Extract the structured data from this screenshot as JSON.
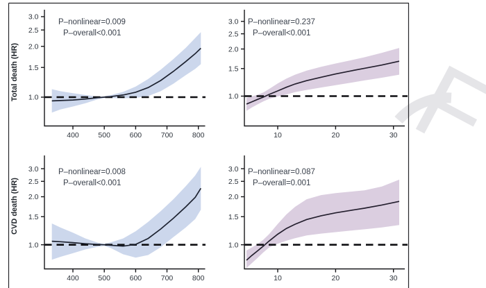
{
  "page": {
    "background": "#ffffff",
    "border_color": "#26262a"
  },
  "watermark": {
    "letter": "F",
    "color": "#e5e5e8"
  },
  "figure": {
    "row_labels": [
      "Total death (HR)",
      "CVD death (HR)"
    ],
    "reference_hr": "1.0"
  },
  "chart_data": [
    {
      "id": "total-death-left",
      "type": "area",
      "ylabel": "Total death (HR)",
      "y_scale": "log",
      "ref_line": 1.0,
      "annotations": [
        "P–nonlinear=0.009",
        "P–overall<0.001"
      ],
      "band_color": "#ccd7ec",
      "line_color": "#1d2230",
      "x_ticks": [
        400,
        500,
        600,
        700,
        800
      ],
      "y_ticks": [
        1.0,
        1.5,
        2.0,
        2.5,
        3.0
      ],
      "x": [
        333,
        360,
        400,
        440,
        480,
        500,
        520,
        560,
        600,
        640,
        680,
        720,
        760,
        790,
        808
      ],
      "hr": [
        0.95,
        0.955,
        0.962,
        0.975,
        0.993,
        1.0,
        1.008,
        1.03,
        1.07,
        1.14,
        1.255,
        1.42,
        1.625,
        1.81,
        1.95
      ],
      "ci_upper": [
        1.115,
        1.085,
        1.055,
        1.03,
        1.008,
        1.01,
        1.028,
        1.075,
        1.155,
        1.28,
        1.455,
        1.68,
        1.96,
        2.24,
        2.43
      ],
      "ci_lower": [
        0.81,
        0.845,
        0.88,
        0.92,
        0.972,
        0.988,
        0.988,
        0.985,
        0.99,
        1.015,
        1.085,
        1.2,
        1.35,
        1.47,
        1.57
      ]
    },
    {
      "id": "total-death-right",
      "type": "area",
      "ylabel": "",
      "y_scale": "log",
      "ref_line": 1.0,
      "annotations": [
        "P–nonlinear=0.237",
        "P–overall<0.001"
      ],
      "band_color": "#dbcee0",
      "line_color": "#241f2e",
      "x_ticks": [
        10,
        20,
        30
      ],
      "y_ticks": [
        1.0,
        1.5,
        2.0,
        2.5,
        3.0
      ],
      "x": [
        4.6,
        5.5,
        6.5,
        7.5,
        8.5,
        10,
        11.5,
        13,
        15,
        17.5,
        20,
        22.5,
        25,
        28,
        31
      ],
      "hr": [
        0.89,
        0.918,
        0.952,
        0.985,
        1.025,
        1.08,
        1.14,
        1.195,
        1.255,
        1.32,
        1.385,
        1.445,
        1.505,
        1.58,
        1.67
      ],
      "ci_upper": [
        0.975,
        0.995,
        1.02,
        1.055,
        1.11,
        1.205,
        1.295,
        1.37,
        1.455,
        1.54,
        1.615,
        1.69,
        1.77,
        1.89,
        2.03
      ],
      "ci_lower": [
        0.805,
        0.845,
        0.885,
        0.925,
        0.96,
        0.995,
        1.025,
        1.06,
        1.095,
        1.135,
        1.175,
        1.215,
        1.26,
        1.31,
        1.37
      ]
    },
    {
      "id": "cvd-death-left",
      "type": "area",
      "ylabel": "CVD death (HR)",
      "y_scale": "log",
      "ref_line": 1.0,
      "annotations": [
        "P–nonlinear=0.008",
        "P–overall<0.001"
      ],
      "band_color": "#ccd7ec",
      "line_color": "#1d2230",
      "x_ticks": [
        400,
        500,
        600,
        700,
        800
      ],
      "y_ticks": [
        1.0,
        1.5,
        2.0,
        2.5,
        3.0
      ],
      "x": [
        333,
        360,
        400,
        440,
        480,
        500,
        520,
        560,
        600,
        640,
        680,
        720,
        760,
        790,
        808
      ],
      "hr": [
        1.052,
        1.045,
        1.032,
        1.015,
        1.003,
        1.0,
        0.993,
        0.98,
        1.005,
        1.095,
        1.255,
        1.465,
        1.73,
        1.985,
        2.26
      ],
      "ci_upper": [
        1.36,
        1.285,
        1.19,
        1.095,
        1.03,
        1.015,
        1.035,
        1.095,
        1.215,
        1.39,
        1.625,
        1.925,
        2.33,
        2.72,
        3.08
      ],
      "ci_lower": [
        0.805,
        0.84,
        0.885,
        0.935,
        0.972,
        0.985,
        0.955,
        0.872,
        0.83,
        0.862,
        0.965,
        1.115,
        1.285,
        1.45,
        1.66
      ]
    },
    {
      "id": "cvd-death-right",
      "type": "area",
      "ylabel": "",
      "y_scale": "log",
      "ref_line": 1.0,
      "annotations": [
        "P–nonlinear=0.087",
        "P–overall=0.001"
      ],
      "band_color": "#dbcee0",
      "line_color": "#241f2e",
      "x_ticks": [
        10,
        20,
        30
      ],
      "y_ticks": [
        1.0,
        1.5,
        2.0,
        2.5,
        3.0
      ],
      "x": [
        4.6,
        5.5,
        6.5,
        7.5,
        8.5,
        10,
        11.5,
        13,
        15,
        17.5,
        20,
        22.5,
        25,
        28,
        31
      ],
      "hr": [
        0.8,
        0.855,
        0.915,
        0.98,
        1.055,
        1.165,
        1.265,
        1.345,
        1.44,
        1.52,
        1.585,
        1.64,
        1.695,
        1.775,
        1.87
      ],
      "ci_upper": [
        0.92,
        0.96,
        1.01,
        1.075,
        1.165,
        1.35,
        1.55,
        1.73,
        1.93,
        2.05,
        2.11,
        2.15,
        2.195,
        2.32,
        2.56
      ],
      "ci_lower": [
        0.715,
        0.765,
        0.825,
        0.895,
        0.96,
        1.015,
        1.06,
        1.1,
        1.145,
        1.175,
        1.2,
        1.225,
        1.25,
        1.285,
        1.33
      ]
    }
  ]
}
